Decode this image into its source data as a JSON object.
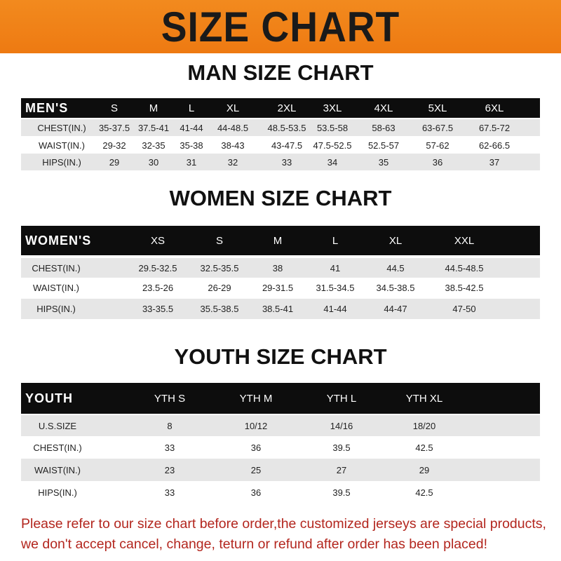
{
  "title": "SIZE CHART",
  "men": {
    "title": "MAN SIZE CHART",
    "header": [
      "MEN'S",
      "S",
      "M",
      "L",
      "XL",
      "2XL",
      "3XL",
      "4XL",
      "5XL",
      "6XL"
    ],
    "rows": [
      [
        "CHEST(IN.)",
        "35-37.5",
        "37.5-41",
        "41-44",
        "44-48.5",
        "48.5-53.5",
        "53.5-58",
        "58-63",
        "63-67.5",
        "67.5-72"
      ],
      [
        "WAIST(IN.)",
        "29-32",
        "32-35",
        "35-38",
        "38-43",
        "43-47.5",
        "47.5-52.5",
        "52.5-57",
        "57-62",
        "62-66.5"
      ],
      [
        "HIPS(IN.)",
        "29",
        "30",
        "31",
        "32",
        "33",
        "34",
        "35",
        "36",
        "37"
      ]
    ]
  },
  "women": {
    "title": "WOMEN SIZE CHART",
    "header": [
      "WOMEN'S",
      "XS",
      "S",
      "M",
      "L",
      "XL",
      "XXL"
    ],
    "rows": [
      [
        "CHEST(IN.)",
        "29.5-32.5",
        "32.5-35.5",
        "38",
        "41",
        "44.5",
        "44.5-48.5"
      ],
      [
        "WAIST(IN.)",
        "23.5-26",
        "26-29",
        "29-31.5",
        "31.5-34.5",
        "34.5-38.5",
        "38.5-42.5"
      ],
      [
        "HIPS(IN.)",
        "33-35.5",
        "35.5-38.5",
        "38.5-41",
        "41-44",
        "44-47",
        "47-50"
      ]
    ]
  },
  "youth": {
    "title": "YOUTH SIZE CHART",
    "header": [
      "YOUTH",
      "YTH S",
      "YTH M",
      "YTH L",
      "YTH XL"
    ],
    "rows": [
      [
        "U.S.SIZE",
        "8",
        "10/12",
        "14/16",
        "18/20"
      ],
      [
        "CHEST(IN.)",
        "33",
        "36",
        "39.5",
        "42.5"
      ],
      [
        "WAIST(IN.)",
        "23",
        "25",
        "27",
        "29"
      ],
      [
        "HIPS(IN.)",
        "33",
        "36",
        "39.5",
        "42.5"
      ]
    ]
  },
  "footer": {
    "line1": "Please refer to our size chart before order,the customized jerseys are special products,",
    "line2": "we don't accept cancel, change, teturn or refund after order has been placed!"
  },
  "colors": {
    "banner": "#f28a1e",
    "header_row": "#0d0d0d",
    "stripe": "#e6e6e6",
    "notice": "#b3261e"
  }
}
